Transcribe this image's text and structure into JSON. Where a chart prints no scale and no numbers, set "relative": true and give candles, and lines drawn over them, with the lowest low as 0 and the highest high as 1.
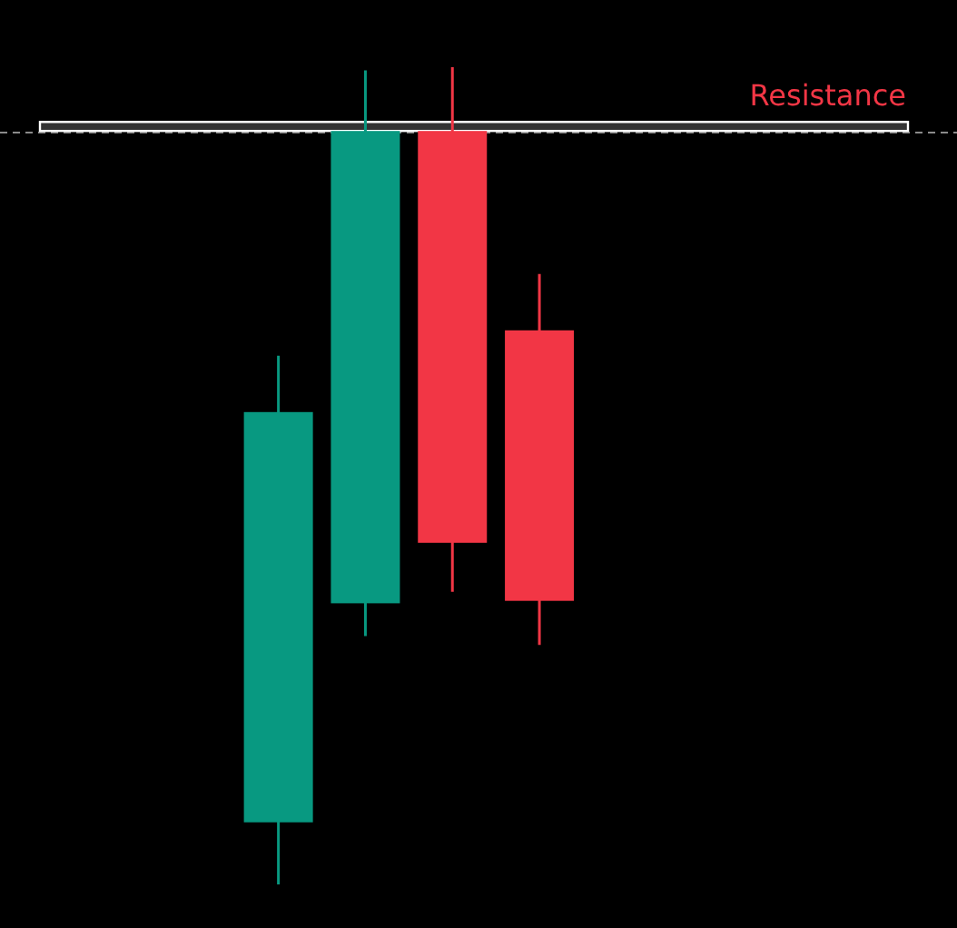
{
  "chart_data": {
    "type": "candlestick",
    "relative": true,
    "categories": [
      null,
      null,
      null,
      null
    ],
    "ohlc": [
      [
        0.076,
        0.647,
        0,
        0.578
      ],
      [
        0.344,
        0.996,
        0.304,
        0.922
      ],
      [
        0.922,
        1,
        0.358,
        0.418
      ],
      [
        0.678,
        0.747,
        0.293,
        0.347
      ]
    ],
    "colors": [
      "#089981",
      "#089981",
      "#f23645",
      "#f23645"
    ],
    "ref_lines": [
      {
        "axis": "y",
        "value": 0.92,
        "color": "#8a8a8a",
        "line_style": "dashed"
      }
    ],
    "bands": [
      {
        "axis": "y",
        "from": 0.922,
        "to": 0.933,
        "label": "Resistance",
        "color": "#ffffff"
      }
    ]
  }
}
